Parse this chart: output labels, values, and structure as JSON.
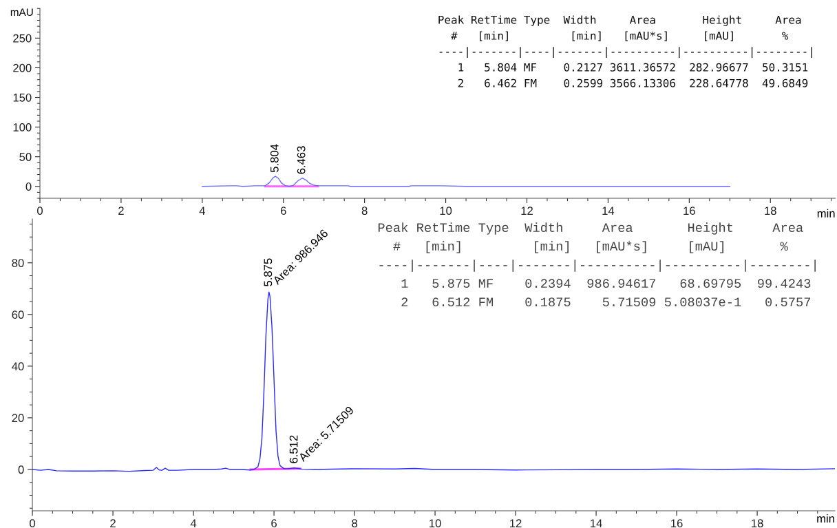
{
  "chart_data": [
    {
      "type": "line",
      "xlabel": "min",
      "ylabel": "mAU",
      "xlim": [
        0,
        19.6
      ],
      "ylim": [
        -20,
        300
      ],
      "xticks": [
        0,
        2,
        4,
        6,
        8,
        10,
        12,
        14,
        16,
        18
      ],
      "yticks": [
        0,
        50,
        100,
        150,
        200,
        250
      ],
      "grid": false,
      "legend": false,
      "series": [
        {
          "color": "#6b6bff",
          "x": [
            4.0,
            4.7,
            4.85,
            5.0,
            5.3,
            5.55,
            5.65,
            5.75,
            5.804,
            5.87,
            5.95,
            6.05,
            6.15,
            6.25,
            6.35,
            6.463,
            6.55,
            6.65,
            6.75,
            6.85,
            7.0,
            7.6,
            7.65,
            9.1,
            9.15,
            9.9,
            10.5,
            17.0
          ],
          "values": [
            0,
            1,
            1,
            0,
            1,
            1,
            6,
            15,
            17,
            14,
            6,
            1,
            0,
            2,
            9,
            14,
            11,
            5,
            2,
            1,
            1,
            1,
            0,
            0,
            1,
            1,
            0,
            0
          ]
        },
        {
          "color": "#ff66ff",
          "x": [
            5.55,
            6.85
          ],
          "values": [
            0,
            0
          ]
        }
      ],
      "annotations": [
        {
          "text": "5.804",
          "x": 5.804,
          "y": 20
        },
        {
          "text": "6.463",
          "x": 6.463,
          "y": 17
        },
        "Peak RetTime Type  Width     Area       Height     Area",
        "  #   [min]         [min]   [mAU*s]     [mAU]       %",
        "----|-------|----|-------|----------|----------|--------|",
        "   1   5.804 MF    0.2127 3611.36572  282.96677  50.3151",
        "   2   6.462 FM    0.2599 3566.13306  228.64778  49.6849"
      ]
    },
    {
      "type": "line",
      "xlabel": "min",
      "xlim": [
        0,
        19.93
      ],
      "ylim": [
        -16,
        97
      ],
      "xticks": [
        0,
        2,
        4,
        6,
        8,
        10,
        12,
        14,
        16,
        18
      ],
      "yticks": [
        0,
        20,
        40,
        60,
        80
      ],
      "grid": false,
      "legend": false,
      "series": [
        {
          "color": "#2a2aff",
          "x": [
            0,
            0.2,
            0.4,
            0.6,
            1.0,
            1.5,
            2.0,
            2.4,
            2.8,
            3.0,
            3.08,
            3.15,
            3.22,
            3.3,
            3.38,
            3.6,
            4.0,
            4.5,
            4.7,
            4.8,
            4.9,
            5.2,
            5.4,
            5.5,
            5.6,
            5.65,
            5.7,
            5.75,
            5.8,
            5.85,
            5.875,
            5.9,
            5.95,
            6.0,
            6.05,
            6.1,
            6.15,
            6.25,
            6.35,
            6.5,
            6.6,
            6.7,
            7.0,
            8.0,
            9.0,
            9.5,
            10.0,
            11.0,
            12.0,
            13.0,
            14.0,
            15.0,
            16.0,
            17.0,
            18.0,
            19.0,
            19.93
          ],
          "values": [
            0,
            -0.3,
            0,
            -0.5,
            -0.6,
            -0.6,
            -0.5,
            -0.7,
            -0.4,
            -0.3,
            0.8,
            -0.2,
            -0.3,
            0.5,
            -0.3,
            -0.3,
            0,
            0,
            0.2,
            0.5,
            0,
            0,
            -0.2,
            0,
            1,
            4,
            12,
            30,
            52,
            66,
            68.7,
            67,
            55,
            35,
            15,
            5,
            1.5,
            0.3,
            0.3,
            0.6,
            0.4,
            0.1,
            0,
            0.3,
            0.2,
            0.4,
            0,
            0,
            -0.2,
            -0.1,
            0,
            0,
            0.2,
            0,
            0.2,
            0,
            0.3
          ]
        },
        {
          "color": "#ff44ff",
          "x": [
            5.42,
            6.65
          ],
          "values": [
            0,
            0.3
          ]
        }
      ],
      "annotations": [
        {
          "text": "5.875",
          "x": 5.875,
          "y": 70
        },
        {
          "text": "Area: 986.946",
          "x": 5.875,
          "y": 70
        },
        {
          "text": "6.512",
          "x": 6.512,
          "y": 1.5
        },
        {
          "text": "Area: 5.71509",
          "x": 6.512,
          "y": 1.5
        },
        "Peak RetTime Type  Width     Area       Height     Area",
        "  #   [min]         [min]   [mAU*s]     [mAU]       %",
        "----|-------|----|-------|----------|----------|--------|",
        "   1   5.875 MF    0.2394  986.94617   68.69795  99.4243",
        "   2   6.512 FM    0.1875    5.71509 5.08037e-1   0.5757"
      ]
    }
  ]
}
